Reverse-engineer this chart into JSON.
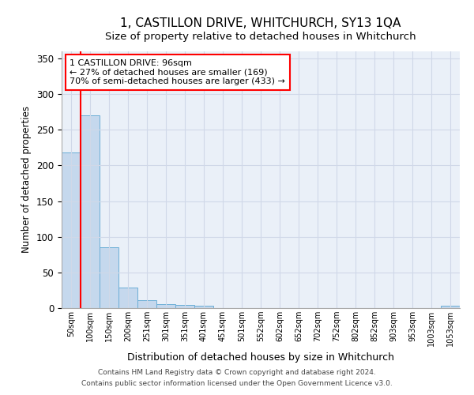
{
  "title": "1, CASTILLON DRIVE, WHITCHURCH, SY13 1QA",
  "subtitle": "Size of property relative to detached houses in Whitchurch",
  "xlabel": "Distribution of detached houses by size in Whitchurch",
  "ylabel": "Number of detached properties",
  "categories": [
    "50sqm",
    "100sqm",
    "150sqm",
    "200sqm",
    "251sqm",
    "301sqm",
    "351sqm",
    "401sqm",
    "451sqm",
    "501sqm",
    "552sqm",
    "602sqm",
    "652sqm",
    "702sqm",
    "752sqm",
    "802sqm",
    "852sqm",
    "903sqm",
    "953sqm",
    "1003sqm",
    "1053sqm"
  ],
  "values": [
    218,
    270,
    85,
    29,
    11,
    5,
    4,
    3,
    0,
    0,
    0,
    0,
    0,
    0,
    0,
    0,
    0,
    0,
    0,
    0,
    3
  ],
  "bar_color": "#c5d8ed",
  "bar_edge_color": "#6baed6",
  "ylim": [
    0,
    360
  ],
  "yticks": [
    0,
    50,
    100,
    150,
    200,
    250,
    300,
    350
  ],
  "annotation_text": "1 CASTILLON DRIVE: 96sqm\n← 27% of detached houses are smaller (169)\n70% of semi-detached houses are larger (433) →",
  "footer_line1": "Contains HM Land Registry data © Crown copyright and database right 2024.",
  "footer_line2": "Contains public sector information licensed under the Open Government Licence v3.0.",
  "title_fontsize": 11,
  "subtitle_fontsize": 9.5,
  "annotation_fontsize": 8,
  "background_color": "#ffffff",
  "grid_color": "#d0d8e8",
  "ax_facecolor": "#eaf0f8"
}
